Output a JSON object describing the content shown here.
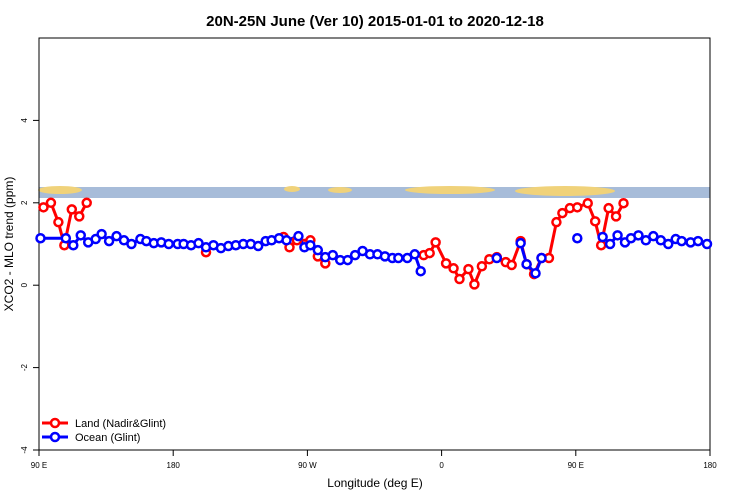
{
  "chart_data": {
    "type": "line",
    "title": "20N-25N June (Ver 10)   2015-01-01 to 2020-12-18",
    "x_label": "Longitude (deg E)",
    "y_label": "XCO2 - MLO trend (ppm)",
    "xlim": [
      90,
      540
    ],
    "xticks": [
      {
        "value": 90,
        "label": "90 E"
      },
      {
        "value": 180,
        "label": "180"
      },
      {
        "value": 270,
        "label": "90 W"
      },
      {
        "value": 360,
        "label": "0"
      },
      {
        "value": 450,
        "label": "90 E"
      },
      {
        "value": 540,
        "label": "180"
      }
    ],
    "ylim": [
      -4,
      6
    ],
    "yticks": [
      -4,
      -2,
      0,
      2,
      4
    ],
    "legend": "bottom-left",
    "series": [
      {
        "name": "Land (Nadir&Glint)",
        "color": "#ff0000",
        "x": [
          93,
          98,
          103,
          107,
          112,
          117,
          122,
          null,
          202,
          null,
          254,
          258,
          263,
          272,
          277,
          282,
          null,
          348,
          352,
          356,
          363,
          368,
          372,
          378,
          382,
          387,
          392,
          397,
          403,
          407,
          413,
          417,
          422,
          427,
          432,
          437,
          441,
          446,
          451,
          458,
          463,
          467,
          472,
          477,
          482
        ],
        "values": [
          1.89,
          2.0,
          1.53,
          0.97,
          1.84,
          1.67,
          2.0,
          null,
          0.8,
          null,
          1.17,
          0.92,
          1.09,
          1.09,
          0.7,
          0.53,
          null,
          0.73,
          0.78,
          1.04,
          0.53,
          0.41,
          0.15,
          0.39,
          0.02,
          0.46,
          0.63,
          0.68,
          0.56,
          0.49,
          1.07,
          0.51,
          0.27,
          0.66,
          0.66,
          1.53,
          1.75,
          1.87,
          1.89,
          1.99,
          1.55,
          0.97,
          1.87,
          1.67,
          1.99
        ]
      },
      {
        "name": "Ocean (Glint)",
        "color": "#0000ff",
        "x": [
          91,
          108,
          113,
          118,
          123,
          128,
          132,
          137,
          142,
          147,
          152,
          158,
          162,
          167,
          172,
          177,
          183,
          187,
          192,
          197,
          202,
          207,
          212,
          217,
          222,
          227,
          232,
          237,
          242,
          246,
          251,
          256,
          264,
          268,
          272,
          277,
          282,
          287,
          292,
          297,
          302,
          307,
          312,
          317,
          322,
          327,
          331,
          337,
          342,
          346,
          null,
          397,
          null,
          413,
          417,
          423,
          427,
          null,
          451,
          null,
          468,
          473,
          478,
          483,
          487,
          492,
          497,
          502,
          507,
          512,
          517,
          521,
          527,
          532,
          538
        ],
        "values": [
          1.14,
          1.14,
          0.97,
          1.21,
          1.04,
          1.12,
          1.24,
          1.07,
          1.19,
          1.09,
          1.0,
          1.12,
          1.07,
          1.02,
          1.04,
          1.0,
          1.0,
          1.0,
          0.97,
          1.02,
          0.92,
          0.97,
          0.9,
          0.95,
          0.97,
          1.0,
          1.0,
          0.95,
          1.07,
          1.09,
          1.14,
          1.09,
          1.19,
          0.92,
          0.97,
          0.85,
          0.68,
          0.73,
          0.61,
          0.61,
          0.73,
          0.83,
          0.75,
          0.75,
          0.7,
          0.66,
          0.66,
          0.66,
          0.75,
          0.34,
          null,
          0.66,
          null,
          1.02,
          0.51,
          0.29,
          0.66,
          null,
          1.14,
          null,
          1.17,
          1.0,
          1.21,
          1.04,
          1.14,
          1.21,
          1.09,
          1.19,
          1.09,
          1.0,
          1.12,
          1.07,
          1.04,
          1.07,
          1.0
        ]
      }
    ]
  }
}
